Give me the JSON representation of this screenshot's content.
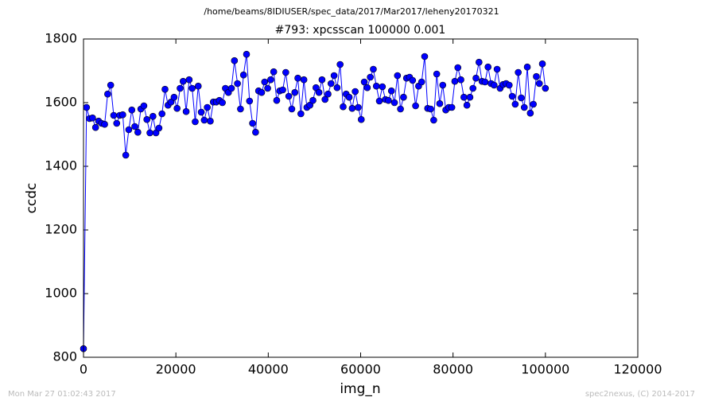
{
  "chart_data": {
    "type": "line",
    "suptitle": "/home/beams/8IDIUSER/spec_data/2017/Mar2017/leheny20170321",
    "title": "#793: xpcsscan 100000 0.001",
    "x_label": "img_n",
    "y_label": "ccdc",
    "timestamp": "Mon Mar 27 01:02:43 2017",
    "credit": "spec2nexus, (C) 2014-2017",
    "xlim": [
      0,
      120000
    ],
    "xticks": [
      0,
      20000,
      40000,
      60000,
      80000,
      100000,
      120000
    ],
    "ylim": [
      800,
      1800
    ],
    "yticks": [
      800,
      1000,
      1200,
      1400,
      1600,
      1800
    ],
    "x": [
      0,
      654,
      1307,
      1961,
      2614,
      3268,
      3922,
      4575,
      5229,
      5882,
      6536,
      7190,
      7843,
      8497,
      9150,
      9804,
      10458,
      11111,
      11765,
      12418,
      13072,
      13725,
      14379,
      15033,
      15686,
      16340,
      16993,
      17647,
      18301,
      18954,
      19608,
      20261,
      20915,
      21569,
      22222,
      22876,
      23529,
      24183,
      24837,
      25490,
      26144,
      26797,
      27451,
      28105,
      28758,
      29412,
      30065,
      30719,
      31373,
      32026,
      32680,
      33333,
      33987,
      34641,
      35294,
      35948,
      36601,
      37255,
      37908,
      38562,
      39216,
      39869,
      40523,
      41176,
      41830,
      42484,
      43137,
      43791,
      44444,
      45098,
      45752,
      46405,
      47059,
      47712,
      48366,
      49020,
      49673,
      50327,
      50980,
      51634,
      52288,
      52941,
      53595,
      54248,
      54902,
      55556,
      56209,
      56863,
      57516,
      58170,
      58824,
      59477,
      60131,
      60784,
      61438,
      62092,
      62745,
      63399,
      64052,
      64706,
      65359,
      66013,
      66667,
      67320,
      67974,
      68627,
      69281,
      69935,
      70588,
      71242,
      71895,
      72549,
      73203,
      73856,
      74510,
      75163,
      75817,
      76471,
      77124,
      77778,
      78431,
      79085,
      79739,
      80392,
      81046,
      81699,
      82353,
      83007,
      83660,
      84314,
      84967,
      85621,
      86275,
      86928,
      87582,
      88235,
      88889,
      89542,
      90196,
      90850,
      91503,
      92157,
      92810,
      93464,
      94118,
      94771,
      95425,
      96078,
      96732,
      97386,
      98039,
      98693,
      99346,
      100000
    ],
    "series": [
      {
        "color": "#0000ff",
        "values": [
          827,
          1585,
          1550,
          1552,
          1522,
          1542,
          1535,
          1532,
          1627,
          1655,
          1560,
          1535,
          1560,
          1562,
          1435,
          1515,
          1577,
          1525,
          1507,
          1580,
          1590,
          1547,
          1505,
          1557,
          1505,
          1520,
          1565,
          1642,
          1592,
          1602,
          1617,
          1582,
          1645,
          1667,
          1572,
          1672,
          1645,
          1540,
          1652,
          1570,
          1545,
          1585,
          1542,
          1602,
          1602,
          1607,
          1600,
          1645,
          1632,
          1645,
          1732,
          1660,
          1580,
          1687,
          1752,
          1605,
          1535,
          1507,
          1637,
          1632,
          1665,
          1645,
          1672,
          1697,
          1607,
          1637,
          1640,
          1695,
          1620,
          1580,
          1632,
          1677,
          1565,
          1672,
          1585,
          1592,
          1607,
          1647,
          1632,
          1672,
          1610,
          1627,
          1660,
          1685,
          1647,
          1720,
          1587,
          1627,
          1617,
          1582,
          1635,
          1585,
          1547,
          1665,
          1647,
          1680,
          1705,
          1652,
          1605,
          1650,
          1610,
          1607,
          1637,
          1600,
          1685,
          1580,
          1617,
          1677,
          1680,
          1670,
          1590,
          1652,
          1665,
          1745,
          1582,
          1580,
          1545,
          1690,
          1597,
          1655,
          1577,
          1585,
          1585,
          1667,
          1710,
          1672,
          1617,
          1592,
          1617,
          1645,
          1677,
          1727,
          1667,
          1665,
          1712,
          1660,
          1655,
          1705,
          1645,
          1657,
          1660,
          1655,
          1620,
          1595,
          1695,
          1615,
          1585,
          1712,
          1567,
          1595,
          1682,
          1660,
          1722,
          1645
        ]
      }
    ]
  }
}
